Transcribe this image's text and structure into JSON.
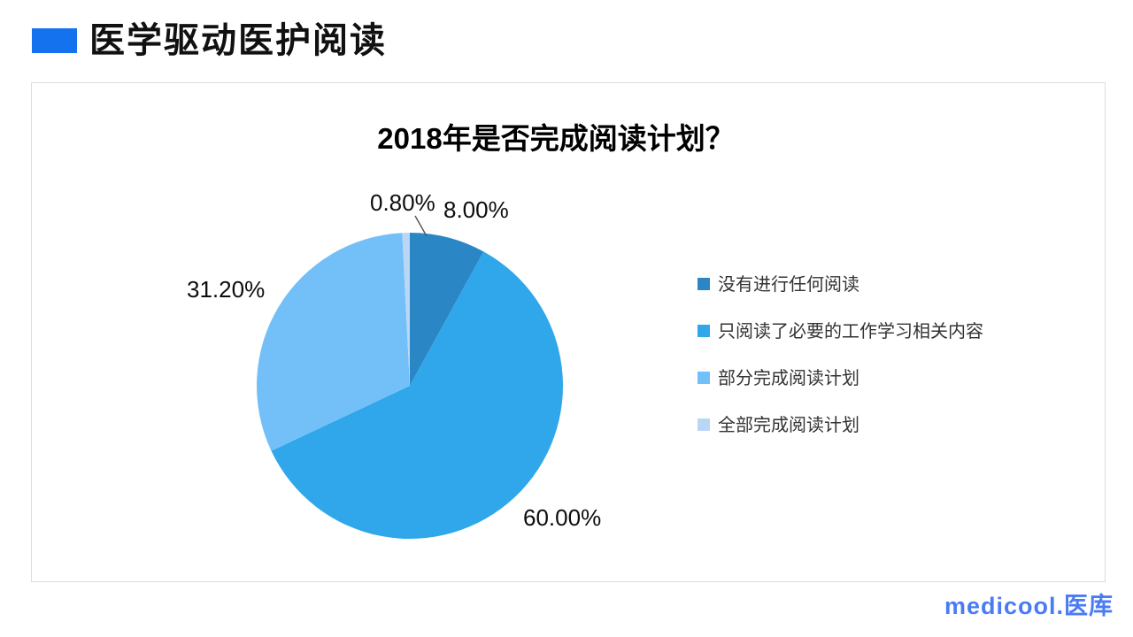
{
  "header": {
    "title": "医学驱动医护阅读"
  },
  "footer": {
    "logo_latin": "medicool",
    "logo_cjk": ".医库"
  },
  "colors": {
    "accent": "#1572EE",
    "logo_blue": "#4A7BF5",
    "card_border": "#DCDCDC",
    "leader_line": "#595959"
  },
  "chart_data": {
    "type": "pie",
    "title": "2018年是否完成阅读计划？",
    "legend_position": "right",
    "start_angle_deg": 0,
    "direction": "clockwise",
    "slices": [
      {
        "label": "没有进行任何阅读",
        "value": 8.0,
        "display": "8.00%",
        "color": "#2B86C5"
      },
      {
        "label": "只阅读了必要的工作学习相关内容",
        "value": 60.0,
        "display": "60.00%",
        "color": "#2FA7EA"
      },
      {
        "label": "部分完成阅读计划",
        "value": 31.2,
        "display": "31.20%",
        "color": "#73BFF8"
      },
      {
        "label": "全部完成阅读计划",
        "value": 0.8,
        "display": "0.80%",
        "color": "#B9D7F4"
      }
    ]
  }
}
